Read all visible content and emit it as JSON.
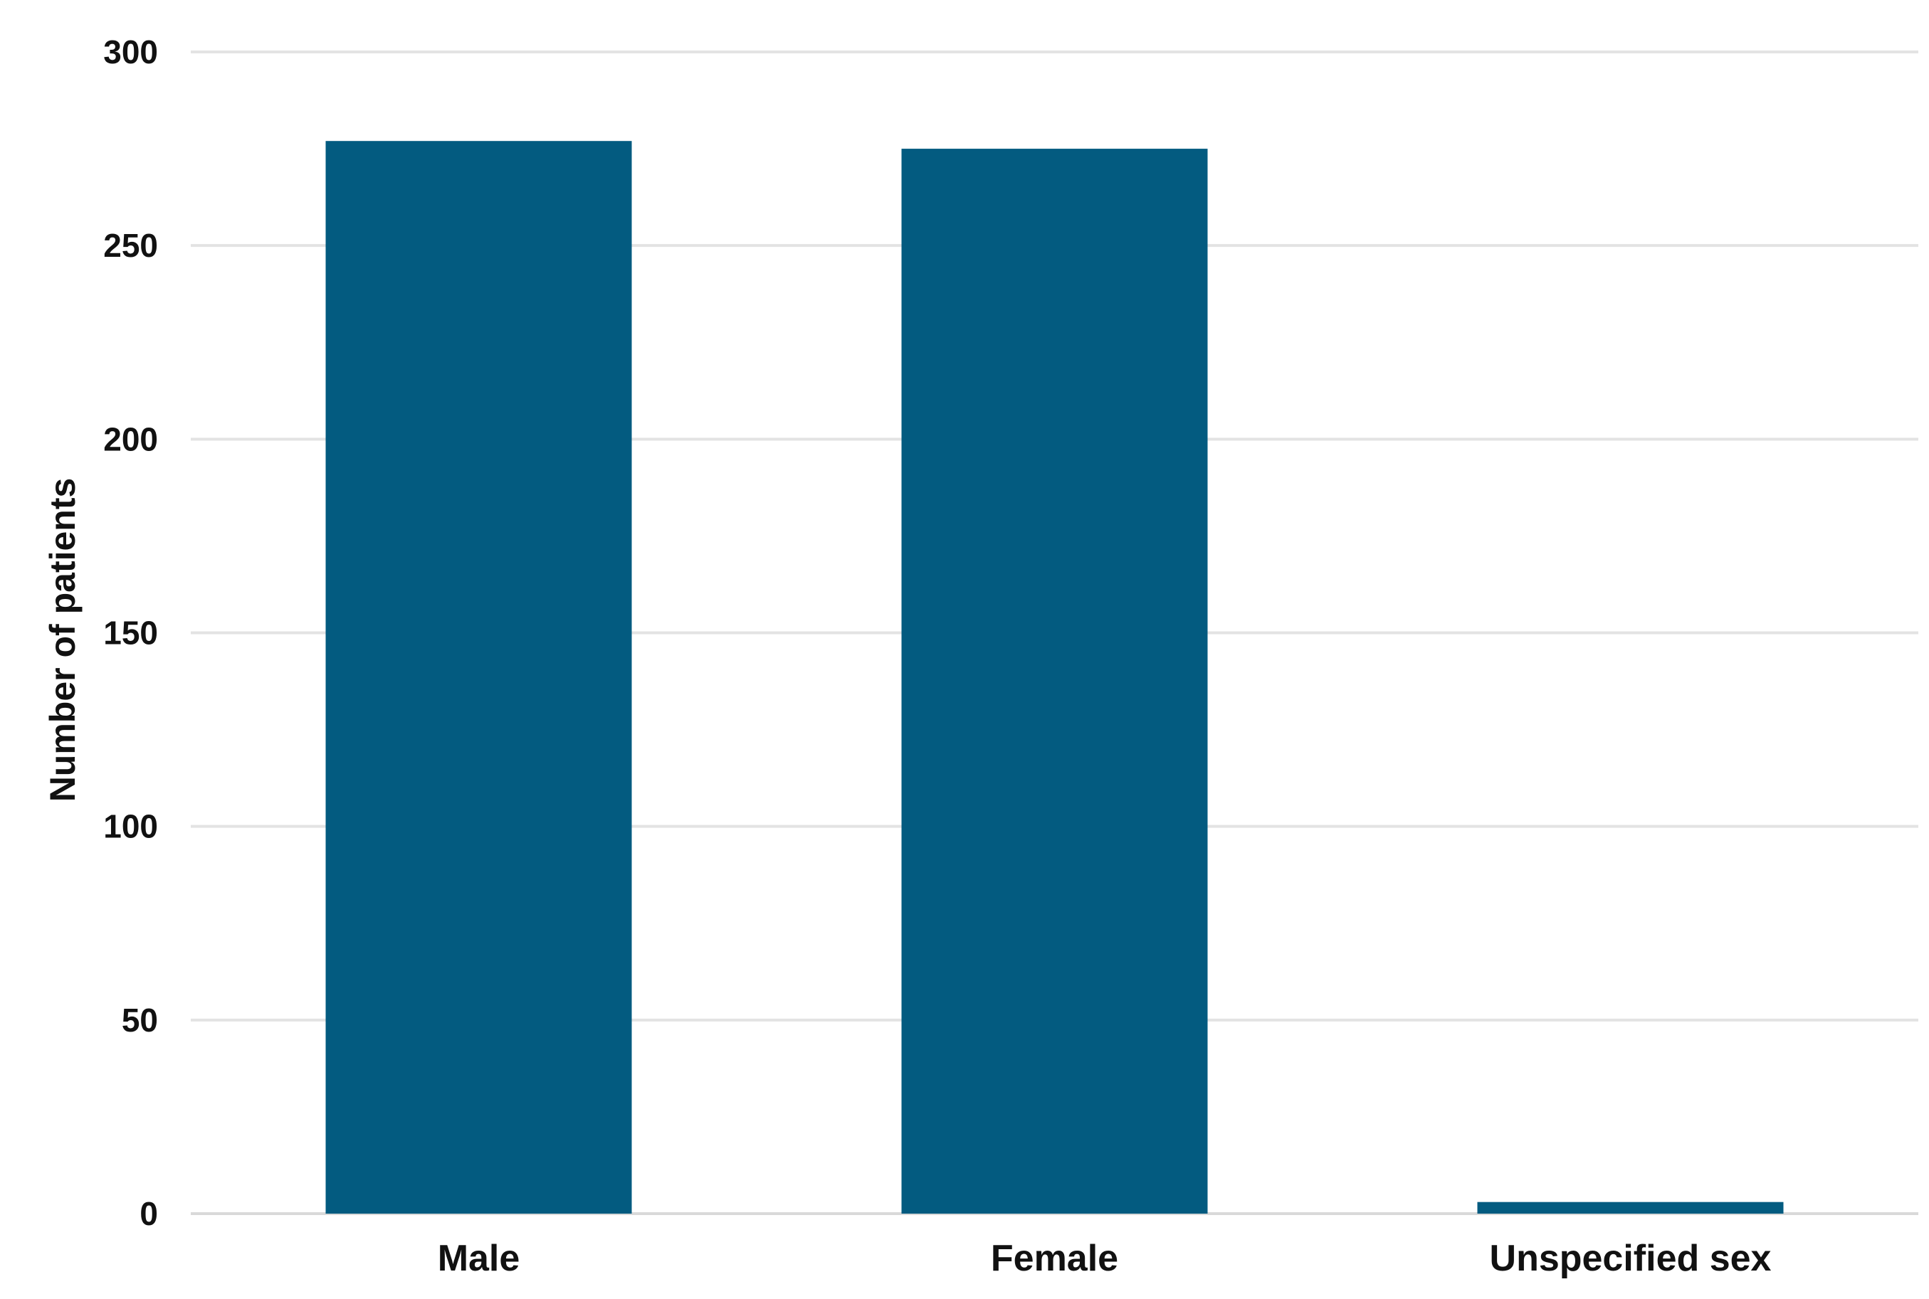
{
  "chart_data": {
    "type": "bar",
    "title": "",
    "xlabel": "",
    "ylabel": "Number of patients",
    "ylim": [
      0,
      300
    ],
    "yticks": [
      0,
      50,
      100,
      150,
      200,
      250,
      300
    ],
    "grid": true,
    "legend": "none",
    "categories": [
      "Male",
      "Female",
      "Unspecified sex"
    ],
    "series": [
      {
        "values": [
          277,
          275,
          3
        ],
        "color": "#035b80"
      }
    ]
  }
}
